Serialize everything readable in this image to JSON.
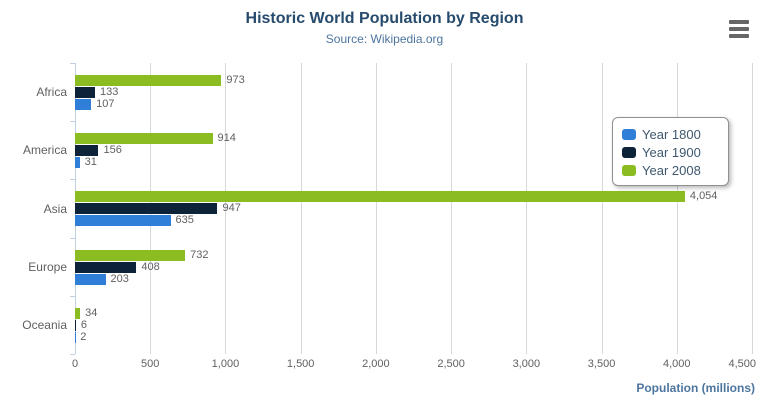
{
  "chart_data": {
    "type": "bar",
    "orientation": "horizontal",
    "title": "Historic World Population by Region",
    "subtitle": "Source: Wikipedia.org",
    "categories": [
      "Africa",
      "America",
      "Asia",
      "Europe",
      "Oceania"
    ],
    "series": [
      {
        "name": "Year 1800",
        "color": "#2f7ed8",
        "values": [
          107,
          31,
          635,
          203,
          2
        ]
      },
      {
        "name": "Year 1900",
        "color": "#0d233a",
        "values": [
          133,
          156,
          947,
          408,
          6
        ]
      },
      {
        "name": "Year 2008",
        "color": "#8bbc21",
        "values": [
          973,
          914,
          4054,
          732,
          34
        ]
      }
    ],
    "bar_order_top_to_bottom": [
      "Year 2008",
      "Year 1900",
      "Year 1800"
    ],
    "xlabel": "Population (millions)",
    "x_ticks": [
      0,
      500,
      1000,
      1500,
      2000,
      2500,
      3000,
      3500,
      4000,
      4500
    ],
    "xlim": [
      0,
      4500
    ],
    "grid": true,
    "data_labels": true,
    "legend_position": "right"
  },
  "ui": {
    "menu_icon": "hamburger",
    "colors": {
      "title": "#274b6d",
      "subtitle": "#4d759e",
      "axis_title": "#4d759e",
      "labels": "#606060",
      "legend_text": "#3e576f",
      "legend_border": "#909090",
      "gridline": "#d8d8d8",
      "category_axis_line": "#c0d0e0",
      "menu_icon": "#666666",
      "background": "#ffffff"
    }
  }
}
